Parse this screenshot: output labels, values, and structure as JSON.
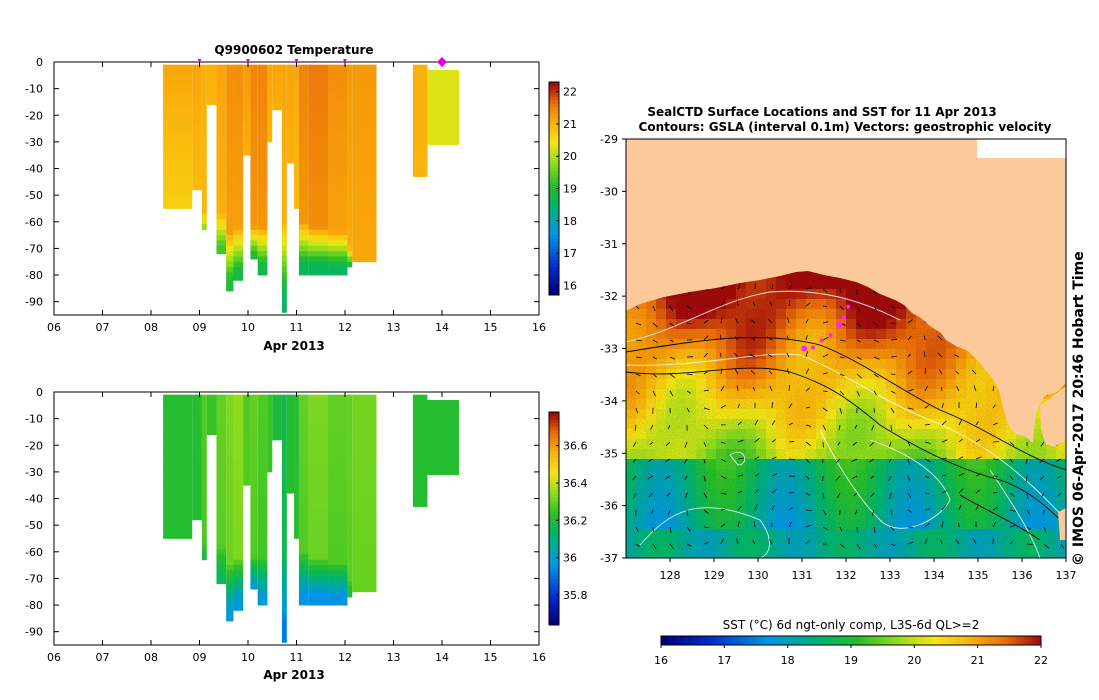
{
  "chart_data": [
    {
      "type": "heatmap",
      "name": "temperature-section",
      "title": "Q9900602  Temperature",
      "xlabel": "Apr 2013",
      "x_ticks": [
        "06",
        "07",
        "08",
        "09",
        "10",
        "11",
        "12",
        "13",
        "14",
        "15",
        "16"
      ],
      "xlim": [
        6,
        16
      ],
      "ylim": [
        -95,
        0
      ],
      "y_ticks": [
        "0",
        "-10",
        "-20",
        "-30",
        "-40",
        "-50",
        "-60",
        "-70",
        "-80",
        "-90"
      ],
      "colorbar": {
        "min": 15.7,
        "max": 22.3,
        "ticks": [
          "16",
          "17",
          "18",
          "19",
          "20",
          "21",
          "22"
        ]
      },
      "profile_markers": [
        9.0,
        10.0,
        11.0,
        12.0
      ],
      "current_marker": 14.0,
      "profiles": [
        {
          "x0": 8.25,
          "x1": 8.85,
          "depth": 55,
          "surface": 21.2,
          "bottom": 20.0,
          "thermo": 0
        },
        {
          "x0": 8.85,
          "x1": 9.05,
          "depth": 48,
          "surface": 21.2,
          "bottom": 20.6,
          "thermo": 0
        },
        {
          "x0": 9.05,
          "x1": 9.15,
          "depth": 63,
          "surface": 21.1,
          "bottom": 19.8,
          "thermo": 55
        },
        {
          "x0": 9.15,
          "x1": 9.35,
          "depth": 16,
          "surface": 21.1,
          "bottom": 20.9,
          "thermo": 0
        },
        {
          "x0": 9.35,
          "x1": 9.55,
          "depth": 72,
          "surface": 21.2,
          "bottom": 19.3,
          "thermo": 55
        },
        {
          "x0": 9.55,
          "x1": 9.7,
          "depth": 86,
          "surface": 21.4,
          "bottom": 19.0,
          "thermo": 62
        },
        {
          "x0": 9.7,
          "x1": 9.9,
          "depth": 82,
          "surface": 21.4,
          "bottom": 18.9,
          "thermo": 60
        },
        {
          "x0": 9.9,
          "x1": 10.05,
          "depth": 35,
          "surface": 21.3,
          "bottom": 20.8,
          "thermo": 0
        },
        {
          "x0": 10.05,
          "x1": 10.2,
          "depth": 74,
          "surface": 21.5,
          "bottom": 19.0,
          "thermo": 60
        },
        {
          "x0": 10.2,
          "x1": 10.4,
          "depth": 80,
          "surface": 21.5,
          "bottom": 18.8,
          "thermo": 60
        },
        {
          "x0": 10.4,
          "x1": 10.5,
          "depth": 30,
          "surface": 21.2,
          "bottom": 20.9,
          "thermo": 0
        },
        {
          "x0": 10.5,
          "x1": 10.7,
          "depth": 18,
          "surface": 21.2,
          "bottom": 21.0,
          "thermo": 0
        },
        {
          "x0": 10.7,
          "x1": 10.8,
          "depth": 94,
          "surface": 21.2,
          "bottom": 18.6,
          "thermo": 58
        },
        {
          "x0": 10.8,
          "x1": 10.95,
          "depth": 38,
          "surface": 21.2,
          "bottom": 20.9,
          "thermo": 0
        },
        {
          "x0": 10.95,
          "x1": 11.05,
          "depth": 55,
          "surface": 21.2,
          "bottom": 20.6,
          "thermo": 0
        },
        {
          "x0": 11.05,
          "x1": 11.25,
          "depth": 80,
          "surface": 21.5,
          "bottom": 18.7,
          "thermo": 58
        },
        {
          "x0": 11.25,
          "x1": 11.65,
          "depth": 80,
          "surface": 21.6,
          "bottom": 18.6,
          "thermo": 60
        },
        {
          "x0": 11.65,
          "x1": 12.05,
          "depth": 80,
          "surface": 21.4,
          "bottom": 18.6,
          "thermo": 62
        },
        {
          "x0": 12.05,
          "x1": 12.15,
          "depth": 77,
          "surface": 21.3,
          "bottom": 19.0,
          "thermo": 68
        },
        {
          "x0": 12.15,
          "x1": 12.65,
          "depth": 75,
          "surface": 21.3,
          "bottom": 21.0,
          "thermo": 0
        },
        {
          "x0": 13.4,
          "x1": 13.7,
          "depth": 43,
          "surface": 21.1,
          "bottom": 21.0,
          "thermo": 0
        },
        {
          "x0": 13.7,
          "x1": 14.35,
          "depth": 31,
          "surface": 20.3,
          "bottom": 20.3,
          "thermo": 0,
          "top": 3
        }
      ]
    },
    {
      "type": "heatmap",
      "name": "salinity-section",
      "title": "",
      "xlabel": "Apr 2013",
      "x_ticks": [
        "06",
        "07",
        "08",
        "09",
        "10",
        "11",
        "12",
        "13",
        "14",
        "15",
        "16"
      ],
      "xlim": [
        6,
        16
      ],
      "ylim": [
        -95,
        0
      ],
      "y_ticks": [
        "0",
        "-10",
        "-20",
        "-30",
        "-40",
        "-50",
        "-60",
        "-70",
        "-80",
        "-90"
      ],
      "colorbar": {
        "min": 35.64,
        "max": 36.78,
        "ticks": [
          "35.8",
          "36",
          "36.2",
          "36.4",
          "36.6"
        ]
      },
      "profiles": [
        {
          "x0": 8.25,
          "x1": 8.85,
          "depth": 55,
          "surface": 36.22,
          "bottom": 36.22,
          "thermo": 0
        },
        {
          "x0": 8.85,
          "x1": 9.05,
          "depth": 48,
          "surface": 36.22,
          "bottom": 36.2,
          "thermo": 0
        },
        {
          "x0": 9.05,
          "x1": 9.15,
          "depth": 63,
          "surface": 36.28,
          "bottom": 36.18,
          "thermo": 55
        },
        {
          "x0": 9.15,
          "x1": 9.35,
          "depth": 16,
          "surface": 36.25,
          "bottom": 36.25,
          "thermo": 0
        },
        {
          "x0": 9.35,
          "x1": 9.55,
          "depth": 72,
          "surface": 36.3,
          "bottom": 36.15,
          "thermo": 55
        },
        {
          "x0": 9.55,
          "x1": 9.7,
          "depth": 86,
          "surface": 36.33,
          "bottom": 35.98,
          "thermo": 62
        },
        {
          "x0": 9.7,
          "x1": 9.9,
          "depth": 82,
          "surface": 36.35,
          "bottom": 35.98,
          "thermo": 60
        },
        {
          "x0": 9.9,
          "x1": 10.05,
          "depth": 35,
          "surface": 36.28,
          "bottom": 36.28,
          "thermo": 0
        },
        {
          "x0": 10.05,
          "x1": 10.2,
          "depth": 74,
          "surface": 36.3,
          "bottom": 36.0,
          "thermo": 60
        },
        {
          "x0": 10.2,
          "x1": 10.4,
          "depth": 80,
          "surface": 36.28,
          "bottom": 35.98,
          "thermo": 60
        },
        {
          "x0": 10.4,
          "x1": 10.5,
          "depth": 30,
          "surface": 36.25,
          "bottom": 36.25,
          "thermo": 0
        },
        {
          "x0": 10.5,
          "x1": 10.7,
          "depth": 18,
          "surface": 36.2,
          "bottom": 36.2,
          "thermo": 0
        },
        {
          "x0": 10.7,
          "x1": 10.8,
          "depth": 94,
          "surface": 36.18,
          "bottom": 35.92,
          "thermo": 58
        },
        {
          "x0": 10.8,
          "x1": 10.95,
          "depth": 38,
          "surface": 36.22,
          "bottom": 36.22,
          "thermo": 0
        },
        {
          "x0": 10.95,
          "x1": 11.05,
          "depth": 55,
          "surface": 36.22,
          "bottom": 36.22,
          "thermo": 0
        },
        {
          "x0": 11.05,
          "x1": 11.25,
          "depth": 80,
          "surface": 36.3,
          "bottom": 35.96,
          "thermo": 58
        },
        {
          "x0": 11.25,
          "x1": 11.65,
          "depth": 80,
          "surface": 36.33,
          "bottom": 35.95,
          "thermo": 60
        },
        {
          "x0": 11.65,
          "x1": 12.05,
          "depth": 80,
          "surface": 36.3,
          "bottom": 35.95,
          "thermo": 62
        },
        {
          "x0": 12.05,
          "x1": 12.15,
          "depth": 77,
          "surface": 36.3,
          "bottom": 36.2,
          "thermo": 68
        },
        {
          "x0": 12.15,
          "x1": 12.65,
          "depth": 75,
          "surface": 36.32,
          "bottom": 36.28,
          "thermo": 0
        },
        {
          "x0": 13.4,
          "x1": 13.7,
          "depth": 43,
          "surface": 36.22,
          "bottom": 36.22,
          "thermo": 0
        },
        {
          "x0": 13.7,
          "x1": 14.35,
          "depth": 31,
          "surface": 36.22,
          "bottom": 36.22,
          "thermo": 0,
          "top": 3
        }
      ]
    },
    {
      "type": "heatmap",
      "name": "sst-map",
      "title": "SealCTD Surface Locations and SST for 11 Apr 2013",
      "subtitle": "Contours: GSLA (interval 0.1m) Vectors: geostrophic velocity",
      "xlim": [
        127,
        137
      ],
      "ylim": [
        -37,
        -29
      ],
      "x_ticks": [
        "128",
        "129",
        "130",
        "131",
        "132",
        "133",
        "134",
        "135",
        "136",
        "137"
      ],
      "y_ticks": [
        "-29",
        "-30",
        "-31",
        "-32",
        "-33",
        "-34",
        "-35",
        "-36",
        "-37"
      ],
      "colorbar": {
        "min": 16,
        "max": 22,
        "ticks": [
          "16",
          "17",
          "18",
          "19",
          "20",
          "21",
          "22"
        ]
      },
      "colorbar_label": "SST (°C) 6d ngt-only comp, L3S-6d QL>=2",
      "locations": [
        {
          "lon": 131.05,
          "lat": -33.0
        },
        {
          "lon": 131.25,
          "lat": -32.98
        },
        {
          "lon": 131.45,
          "lat": -32.85
        },
        {
          "lon": 131.65,
          "lat": -32.75
        },
        {
          "lon": 131.85,
          "lat": -32.55
        },
        {
          "lon": 131.95,
          "lat": -32.4
        },
        {
          "lon": 132.05,
          "lat": -32.2
        }
      ]
    }
  ],
  "side_label": "© IMOS 06-Apr-2017 20:46 Hobart Time"
}
